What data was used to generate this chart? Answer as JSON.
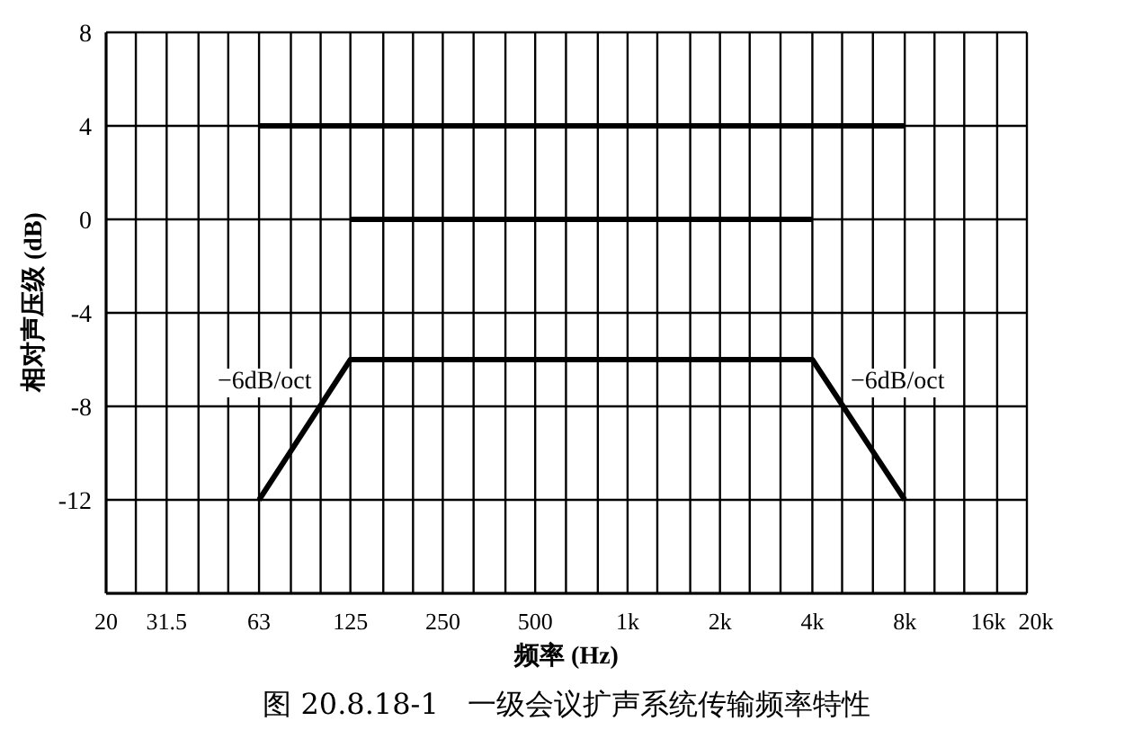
{
  "chart_data": {
    "type": "line",
    "title": "图 20.8.18-1　一级会议扩声系统传输频率特性",
    "xlabel": "频率 (Hz)",
    "ylabel": "相对声压级 (dB)",
    "log": "x",
    "grid": true,
    "marker": "none",
    "line_style": "solid",
    "xlim": [
      20,
      20000
    ],
    "xticks": [
      20,
      {
        "value": 25,
        "label": null
      },
      31.5,
      {
        "value": 40,
        "label": null
      },
      {
        "value": 50,
        "label": null
      },
      63,
      {
        "value": 80,
        "label": null
      },
      {
        "value": 100,
        "label": null
      },
      125,
      {
        "value": 160,
        "label": null
      },
      {
        "value": 200,
        "label": null
      },
      250,
      {
        "value": 315,
        "label": null
      },
      {
        "value": 400,
        "label": null
      },
      500,
      {
        "value": 630,
        "label": null
      },
      {
        "value": 800,
        "label": null
      },
      {
        "value": 1000,
        "label": "1k"
      },
      {
        "value": 1250,
        "label": null
      },
      {
        "value": 1600,
        "label": null
      },
      {
        "value": 2000,
        "label": "2k"
      },
      {
        "value": 2500,
        "label": null
      },
      {
        "value": 3150,
        "label": null
      },
      {
        "value": 4000,
        "label": "4k"
      },
      {
        "value": 5000,
        "label": null
      },
      {
        "value": 6300,
        "label": null
      },
      {
        "value": 8000,
        "label": "8k"
      },
      {
        "value": 10000,
        "label": null
      },
      {
        "value": 12500,
        "label": null
      },
      {
        "value": 16000,
        "label": "16k"
      },
      {
        "value": 20000,
        "label": "20k"
      }
    ],
    "ylim": [
      -16,
      8
    ],
    "yticks": [
      {
        "value": -16,
        "label": null
      },
      -12,
      -8,
      -4,
      0,
      4,
      8
    ],
    "series": [
      {
        "color": "#000000",
        "x": [
          63,
          8000
        ],
        "values": [
          4,
          4
        ]
      },
      {
        "color": "#000000",
        "x": [
          125,
          4000
        ],
        "values": [
          0,
          0
        ]
      },
      {
        "color": "#000000",
        "x": [
          63,
          125,
          4000,
          8000
        ],
        "values": [
          -12,
          -6,
          -6,
          -12
        ]
      }
    ],
    "annotations": [
      "−6dB/oct",
      "−6dB/oct"
    ]
  }
}
